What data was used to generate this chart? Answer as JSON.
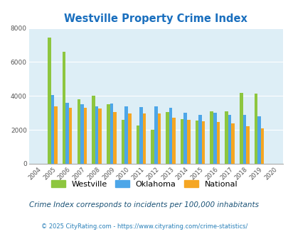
{
  "title": "Westville Property Crime Index",
  "years": [
    "2004",
    "2005",
    "2006",
    "2007",
    "2008",
    "2009",
    "2010",
    "2011",
    "2012",
    "2013",
    "2014",
    "2015",
    "2016",
    "2017",
    "2018",
    "2019",
    "2020"
  ],
  "westville": [
    0,
    7450,
    6600,
    3800,
    4000,
    3500,
    2600,
    2250,
    2000,
    3050,
    2650,
    2550,
    3100,
    3100,
    4200,
    4150,
    0
  ],
  "oklahoma": [
    0,
    4050,
    3600,
    3500,
    3400,
    3550,
    3400,
    3350,
    3400,
    3300,
    3000,
    2900,
    3000,
    2900,
    2900,
    2800,
    0
  ],
  "national": [
    0,
    3400,
    3300,
    3300,
    3250,
    3050,
    2950,
    2950,
    2950,
    2700,
    2600,
    2500,
    2450,
    2400,
    2200,
    2100,
    0
  ],
  "bar_width": 0.22,
  "ylim": [
    0,
    8000
  ],
  "yticks": [
    0,
    2000,
    4000,
    6000,
    8000
  ],
  "color_westville": "#8dc63f",
  "color_oklahoma": "#4da6e8",
  "color_national": "#f5a623",
  "bg_color": "#ddeef6",
  "title_color": "#1a6fbe",
  "title_fontsize": 10.5,
  "legend_labels": [
    "Westville",
    "Oklahoma",
    "National"
  ],
  "subtitle": "Crime Index corresponds to incidents per 100,000 inhabitants",
  "footer": "© 2025 CityRating.com - https://www.cityrating.com/crime-statistics/",
  "subtitle_color": "#1a5276",
  "footer_color": "#2980b9"
}
